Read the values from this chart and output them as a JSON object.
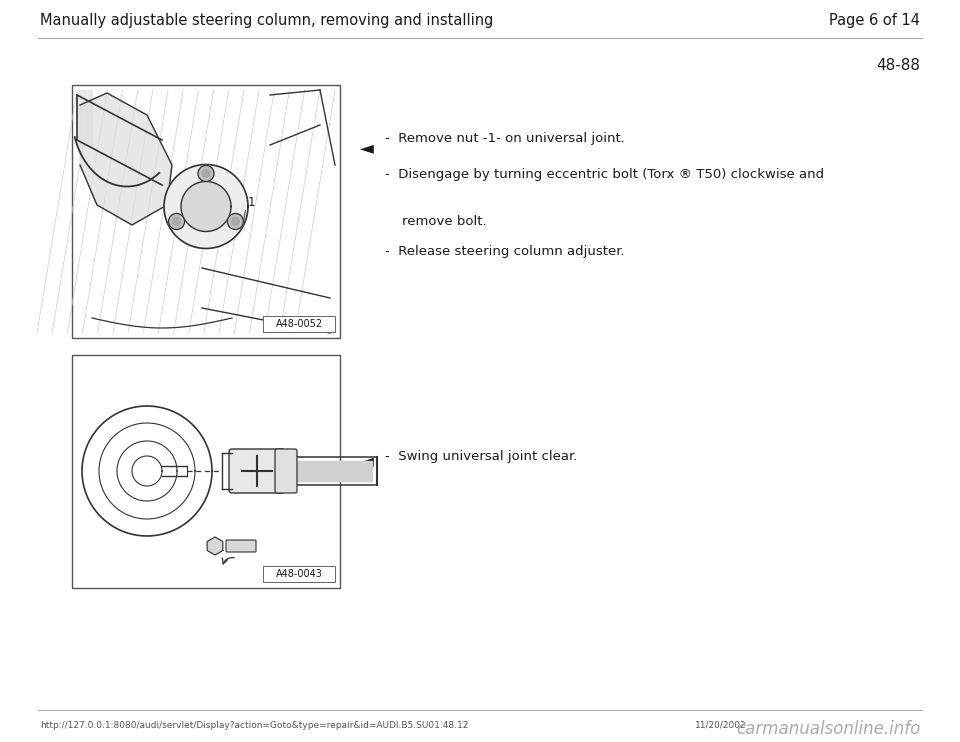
{
  "bg_color": "#ffffff",
  "header_text": "Manually adjustable steering column, removing and installing",
  "page_text": "Page 6 of 14",
  "section_number": "48-88",
  "image1_label": "A48-0052",
  "image2_label": "A48-0043",
  "bullet1_lines": [
    "Remove nut -1- on universal joint.",
    "Disengage by turning eccentric bolt (Torx ® T50) clockwise and\nremove bolt.",
    "Release steering column adjuster."
  ],
  "bullet2_lines": [
    "Swing universal joint clear."
  ],
  "footer_url": "http://127.0.0.1:8080/audi/servlet/Display?action=Goto&type=repair&id=AUDI.B5.SU01.48.12",
  "footer_date": "11/20/2002",
  "footer_brand": "carmanualsonline.info",
  "text_color": "#1a1a1a",
  "line_color": "#333333",
  "footer_color": "#555555",
  "brand_color": "#aaaaaa",
  "header_fontsize": 10.5,
  "body_fontsize": 9.5,
  "section_fontsize": 11
}
